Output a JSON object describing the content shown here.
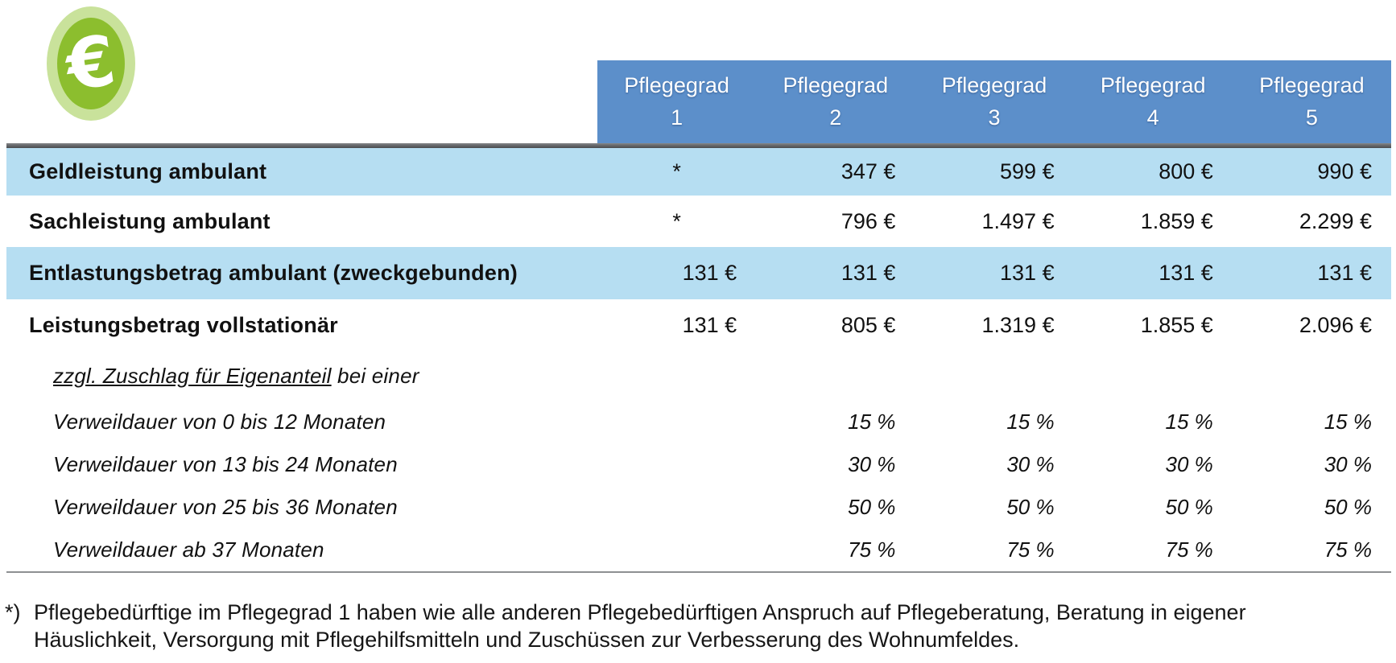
{
  "icon": {
    "glyph": "€"
  },
  "header": {
    "columns": [
      {
        "title": "Pflegegrad",
        "grade": "1"
      },
      {
        "title": "Pflegegrad",
        "grade": "2"
      },
      {
        "title": "Pflegegrad",
        "grade": "3"
      },
      {
        "title": "Pflegegrad",
        "grade": "4"
      },
      {
        "title": "Pflegegrad",
        "grade": "5"
      }
    ]
  },
  "table": {
    "rows": [
      {
        "label": "Geldleistung ambulant",
        "values": [
          "*",
          "347 €",
          "599 €",
          "800 €",
          "990 €"
        ]
      },
      {
        "label": "Sachleistung ambulant",
        "values": [
          "*",
          "796 €",
          "1.497 €",
          "1.859 €",
          "2.299 €"
        ]
      },
      {
        "label": "Entlastungsbetrag ambulant (zweckgebunden)",
        "values": [
          "131 €",
          "131 €",
          "131 €",
          "131 €",
          "131 €"
        ]
      },
      {
        "label": "Leistungsbetrag vollstationär",
        "values": [
          "131 €",
          "805 €",
          "1.319 €",
          "1.855 €",
          "2.096 €"
        ]
      },
      {
        "label_underlined": "zzgl. Zuschlag für Eigenanteil",
        "label_rest": " bei einer",
        "values": [
          "",
          "",
          "",
          "",
          ""
        ]
      },
      {
        "label": "Verweildauer von 0 bis 12 Monaten",
        "values": [
          "",
          "15 %",
          "15 %",
          "15 %",
          "15 %"
        ]
      },
      {
        "label": "Verweildauer von 13 bis 24 Monaten",
        "values": [
          "",
          "30 %",
          "30 %",
          "30 %",
          "30 %"
        ]
      },
      {
        "label": "Verweildauer von 25 bis 36 Monaten",
        "values": [
          "",
          "50 %",
          "50 %",
          "50 %",
          "50 %"
        ]
      },
      {
        "label": "Verweildauer ab 37 Monaten",
        "values": [
          "",
          "75 %",
          "75 %",
          "75 %",
          "75 %"
        ]
      }
    ]
  },
  "footnote": {
    "marker": "*)",
    "line1": "Pflegebedürftige im Pflegegrad 1 haben wie alle anderen Pflegebedürftigen Anspruch auf Pflegeberatung, Beratung in eigener",
    "line2": "Häuslichkeit, Versorgung mit Pflegehilfsmitteln und Zuschüssen zur Verbesserung des Wohnumfeldes."
  },
  "colors": {
    "header_bg": "#5c8fca",
    "header_text": "#ffffff",
    "row_highlight": "#b6def2",
    "icon_ring": "#c9e29b",
    "icon_fill": "#8cbe2e",
    "top_rule": "#4a4c4f",
    "bottom_rule": "#8e9092",
    "text": "#111111"
  }
}
